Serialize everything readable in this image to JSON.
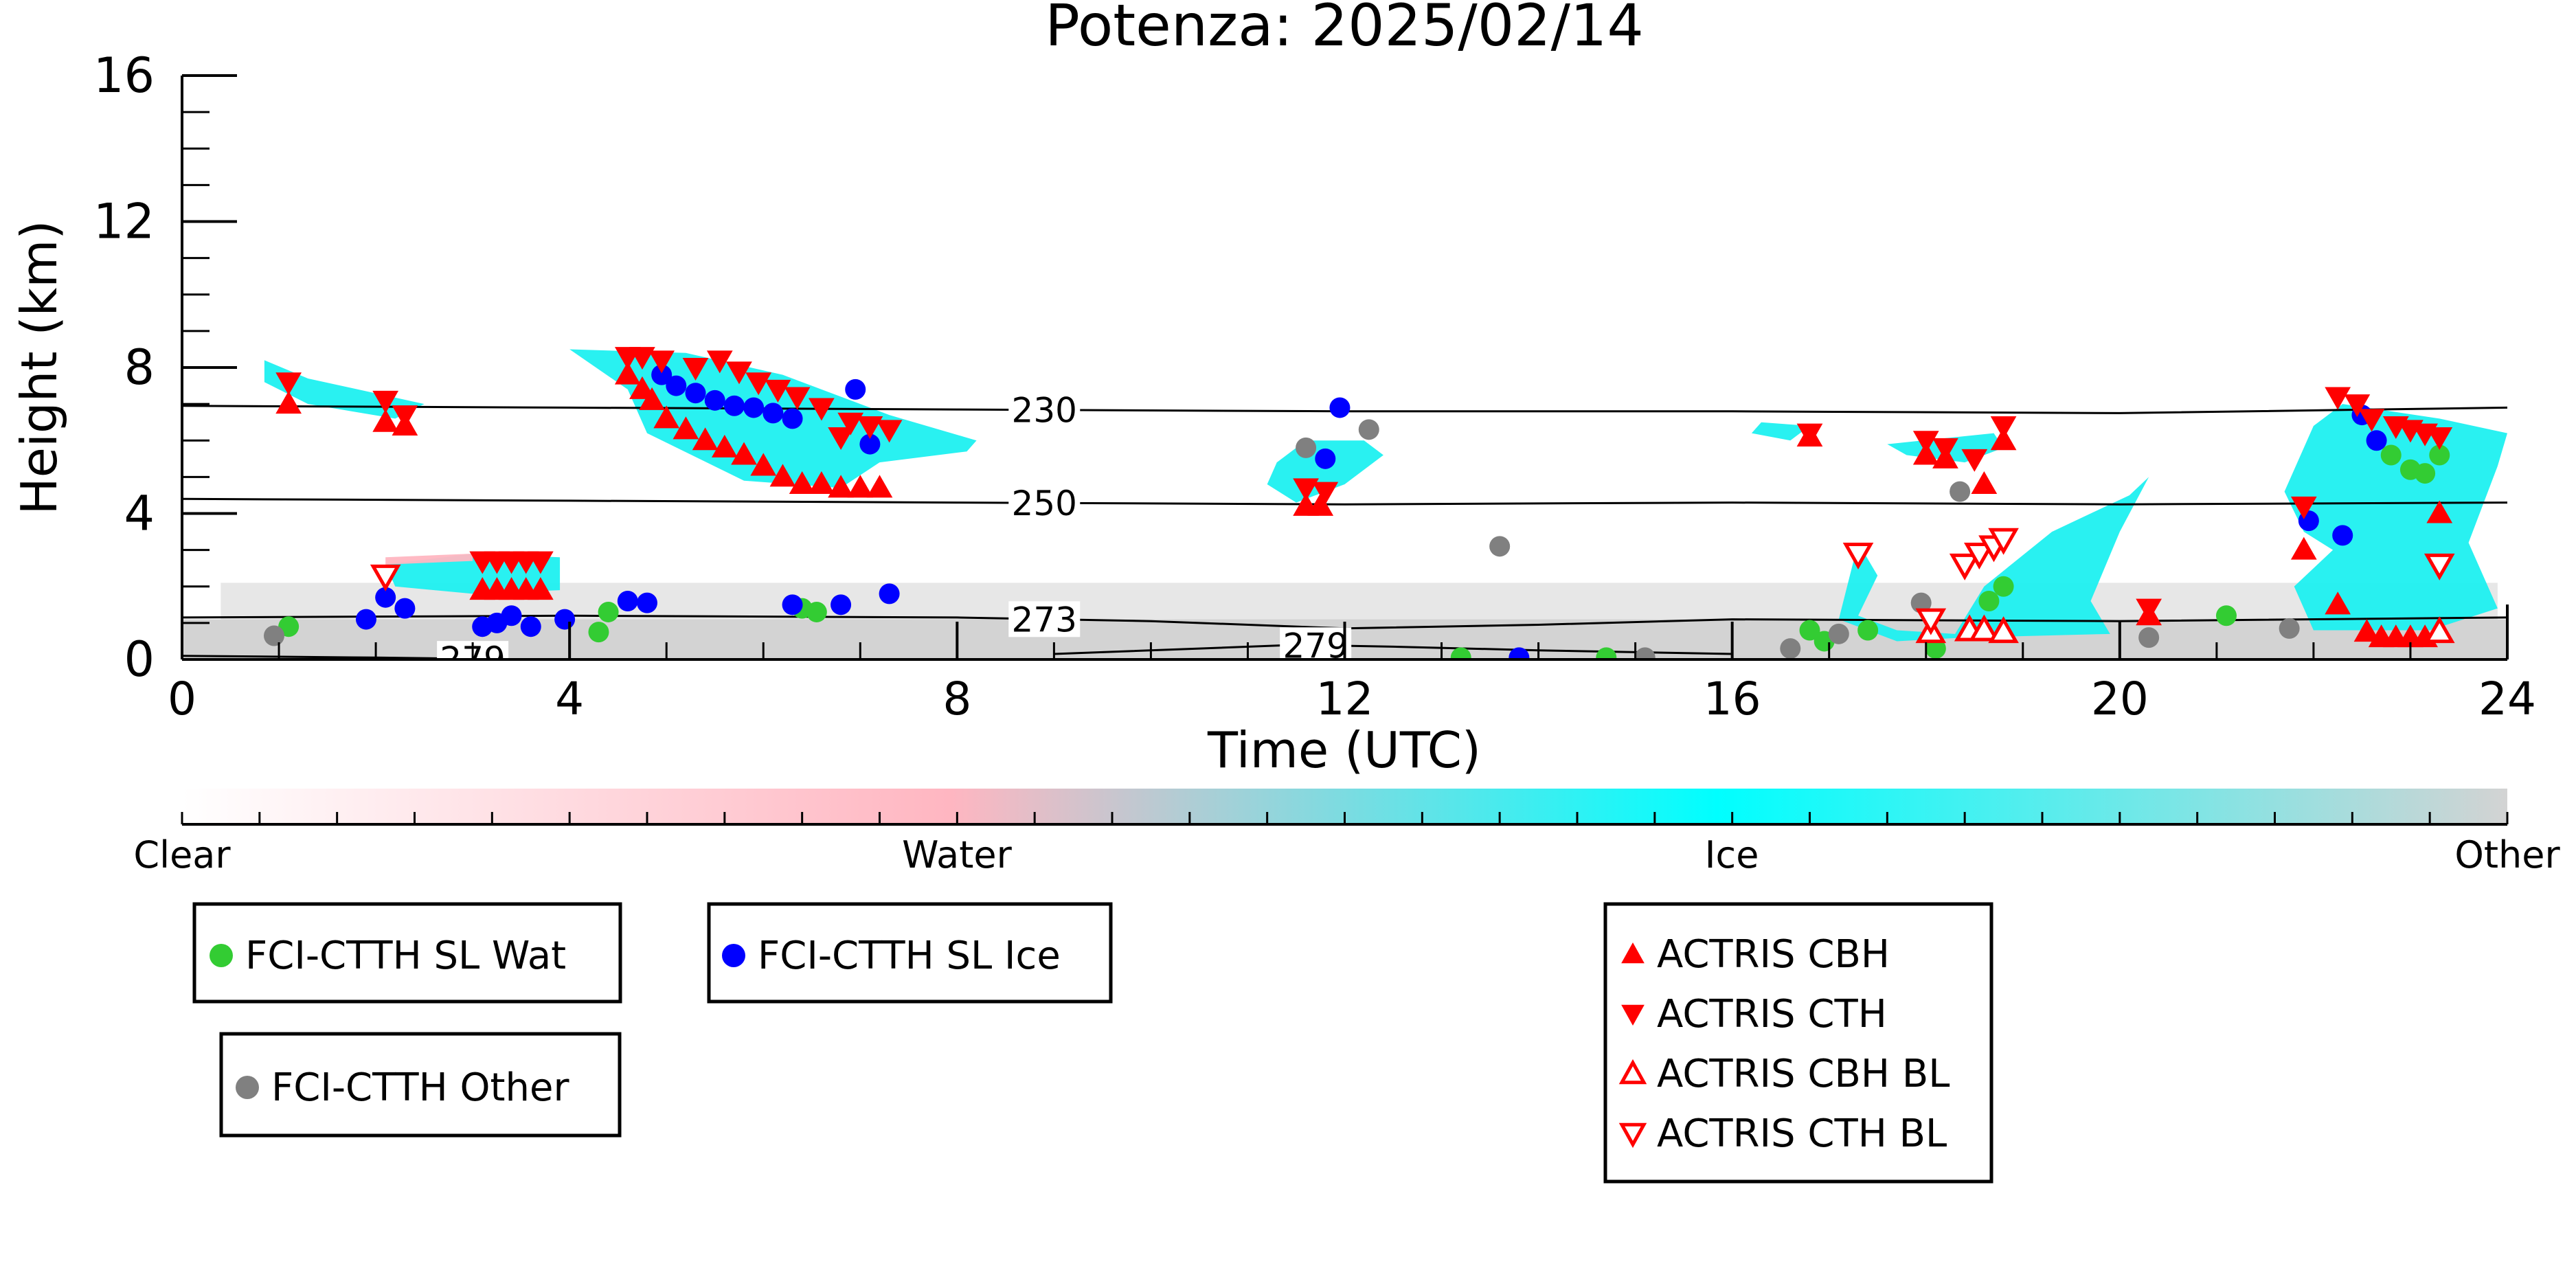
{
  "chart_data": {
    "type": "scatter",
    "title": "Potenza: 2025/02/14",
    "xlabel": "Time (UTC)",
    "ylabel": "Height (km)",
    "xlim": [
      0,
      24
    ],
    "ylim": [
      0,
      16
    ],
    "xticks": [
      0,
      4,
      8,
      12,
      16,
      20,
      24
    ],
    "yticks": [
      0,
      4,
      8,
      12,
      16
    ],
    "colorbar": {
      "labels": [
        "Clear",
        "Water",
        "Ice",
        "Other"
      ],
      "colors": [
        "#ffffff",
        "#ffb6c1",
        "#00ffff",
        "#d3d3d3"
      ]
    },
    "contours": [
      {
        "label": "230",
        "points": [
          [
            0,
            6.95
          ],
          [
            4,
            6.9
          ],
          [
            8,
            6.85
          ],
          [
            12,
            6.8
          ],
          [
            16,
            6.8
          ],
          [
            20,
            6.75
          ],
          [
            24,
            6.9
          ]
        ]
      },
      {
        "label": "250",
        "points": [
          [
            0,
            4.4
          ],
          [
            4,
            4.35
          ],
          [
            8,
            4.3
          ],
          [
            12,
            4.25
          ],
          [
            16,
            4.3
          ],
          [
            20,
            4.25
          ],
          [
            24,
            4.3
          ]
        ]
      },
      {
        "label": "273",
        "points": [
          [
            0,
            1.15
          ],
          [
            4,
            1.2
          ],
          [
            8,
            1.15
          ],
          [
            10,
            1.05
          ],
          [
            12,
            0.85
          ],
          [
            14,
            0.95
          ],
          [
            16,
            1.1
          ],
          [
            20,
            1.05
          ],
          [
            24,
            1.15
          ]
        ]
      },
      {
        "label": "279",
        "points": [
          [
            9,
            0.15
          ],
          [
            10.5,
            0.3
          ],
          [
            11.5,
            0.4
          ],
          [
            12.5,
            0.35
          ],
          [
            14,
            0.25
          ],
          [
            16,
            0.15
          ]
        ]
      },
      {
        "label": "279",
        "points": [
          [
            0,
            0.1
          ],
          [
            2,
            0.05
          ],
          [
            3.5,
            0.0
          ]
        ]
      }
    ],
    "series": [
      {
        "name": "FCI-CTTH SL Wat",
        "marker": "circle",
        "color": "#33cc33",
        "points": [
          [
            1.1,
            0.9
          ],
          [
            4.3,
            0.75
          ],
          [
            4.4,
            1.3
          ],
          [
            6.4,
            1.4
          ],
          [
            6.55,
            1.3
          ],
          [
            13.2,
            0.05
          ],
          [
            14.7,
            0.05
          ],
          [
            16.8,
            0.8
          ],
          [
            16.95,
            0.5
          ],
          [
            17.4,
            0.8
          ],
          [
            18.1,
            0.3
          ],
          [
            18.65,
            1.6
          ],
          [
            18.8,
            2.0
          ],
          [
            21.1,
            1.2
          ],
          [
            22.8,
            5.6
          ],
          [
            23.0,
            5.2
          ],
          [
            23.15,
            5.1
          ],
          [
            23.3,
            5.6
          ]
        ]
      },
      {
        "name": "FCI-CTTH SL Ice",
        "marker": "circle",
        "color": "#0000ff",
        "points": [
          [
            1.9,
            1.1
          ],
          [
            2.1,
            1.7
          ],
          [
            2.3,
            1.4
          ],
          [
            3.1,
            0.9
          ],
          [
            3.25,
            1.0
          ],
          [
            3.4,
            1.2
          ],
          [
            3.6,
            0.9
          ],
          [
            3.95,
            1.1
          ],
          [
            4.6,
            1.6
          ],
          [
            4.8,
            1.55
          ],
          [
            4.95,
            7.8
          ],
          [
            5.1,
            7.5
          ],
          [
            5.3,
            7.3
          ],
          [
            5.5,
            7.1
          ],
          [
            5.7,
            6.95
          ],
          [
            5.9,
            6.9
          ],
          [
            6.1,
            6.75
          ],
          [
            6.3,
            6.6
          ],
          [
            6.3,
            1.5
          ],
          [
            6.8,
            1.5
          ],
          [
            6.95,
            7.4
          ],
          [
            7.1,
            5.9
          ],
          [
            7.3,
            1.8
          ],
          [
            11.8,
            5.5
          ],
          [
            11.95,
            6.9
          ],
          [
            13.8,
            0.05
          ],
          [
            21.95,
            3.8
          ],
          [
            22.3,
            3.4
          ],
          [
            22.5,
            6.7
          ],
          [
            22.65,
            6.0
          ]
        ]
      },
      {
        "name": "FCI-CTTH Other",
        "marker": "circle",
        "color": "#808080",
        "points": [
          [
            0.95,
            0.65
          ],
          [
            11.6,
            5.8
          ],
          [
            12.25,
            6.3
          ],
          [
            13.6,
            3.1
          ],
          [
            15.1,
            0.05
          ],
          [
            16.6,
            0.3
          ],
          [
            17.1,
            0.7
          ],
          [
            17.95,
            1.55
          ],
          [
            18.35,
            4.6
          ],
          [
            20.3,
            0.6
          ],
          [
            21.75,
            0.85
          ]
        ]
      },
      {
        "name": "ACTRIS CBH",
        "marker": "triangle-up",
        "color": "#ff0000",
        "filled": true,
        "points": [
          [
            1.1,
            7.0
          ],
          [
            2.1,
            6.5
          ],
          [
            2.3,
            6.4
          ],
          [
            3.1,
            1.9
          ],
          [
            3.25,
            1.9
          ],
          [
            3.4,
            1.9
          ],
          [
            3.55,
            1.9
          ],
          [
            3.7,
            1.9
          ],
          [
            4.6,
            7.8
          ],
          [
            4.75,
            7.4
          ],
          [
            4.85,
            7.1
          ],
          [
            5.0,
            6.6
          ],
          [
            5.2,
            6.3
          ],
          [
            5.4,
            6.0
          ],
          [
            5.6,
            5.8
          ],
          [
            5.8,
            5.6
          ],
          [
            6.0,
            5.3
          ],
          [
            6.2,
            5.0
          ],
          [
            6.4,
            4.8
          ],
          [
            6.6,
            4.8
          ],
          [
            6.8,
            4.7
          ],
          [
            7.0,
            4.7
          ],
          [
            7.2,
            4.7
          ],
          [
            11.6,
            4.2
          ],
          [
            11.75,
            4.2
          ],
          [
            16.8,
            6.1
          ],
          [
            18.0,
            5.6
          ],
          [
            18.2,
            5.5
          ],
          [
            18.6,
            4.8
          ],
          [
            18.8,
            6.0
          ],
          [
            20.3,
            1.2
          ],
          [
            21.9,
            3.0
          ],
          [
            22.25,
            1.5
          ],
          [
            22.55,
            0.75
          ],
          [
            22.7,
            0.6
          ],
          [
            22.85,
            0.6
          ],
          [
            23.0,
            0.6
          ],
          [
            23.15,
            0.6
          ],
          [
            23.3,
            4.0
          ]
        ]
      },
      {
        "name": "ACTRIS CTH",
        "marker": "triangle-down",
        "color": "#ff0000",
        "filled": true,
        "points": [
          [
            1.1,
            7.6
          ],
          [
            2.1,
            7.1
          ],
          [
            2.3,
            6.7
          ],
          [
            3.1,
            2.7
          ],
          [
            3.25,
            2.7
          ],
          [
            3.4,
            2.7
          ],
          [
            3.55,
            2.7
          ],
          [
            3.7,
            2.7
          ],
          [
            4.6,
            8.3
          ],
          [
            4.75,
            8.3
          ],
          [
            4.95,
            8.2
          ],
          [
            5.3,
            8.0
          ],
          [
            5.55,
            8.2
          ],
          [
            5.75,
            7.9
          ],
          [
            5.95,
            7.6
          ],
          [
            6.15,
            7.4
          ],
          [
            6.35,
            7.2
          ],
          [
            6.6,
            6.9
          ],
          [
            6.8,
            6.1
          ],
          [
            6.9,
            6.5
          ],
          [
            7.1,
            6.4
          ],
          [
            7.3,
            6.3
          ],
          [
            11.6,
            4.7
          ],
          [
            11.8,
            4.6
          ],
          [
            16.8,
            6.2
          ],
          [
            18.0,
            6.0
          ],
          [
            18.2,
            5.8
          ],
          [
            18.5,
            5.5
          ],
          [
            18.8,
            6.4
          ],
          [
            20.3,
            1.4
          ],
          [
            21.9,
            4.2
          ],
          [
            22.25,
            7.2
          ],
          [
            22.45,
            7.0
          ],
          [
            22.6,
            6.6
          ],
          [
            22.85,
            6.4
          ],
          [
            23.0,
            6.3
          ],
          [
            23.15,
            6.2
          ],
          [
            23.3,
            6.1
          ]
        ]
      },
      {
        "name": "ACTRIS CBH BL",
        "marker": "triangle-up",
        "color": "#ff0000",
        "filled": false,
        "points": [
          [
            18.05,
            0.75
          ],
          [
            18.45,
            0.8
          ],
          [
            18.6,
            0.8
          ],
          [
            18.8,
            0.75
          ],
          [
            23.3,
            0.75
          ]
        ]
      },
      {
        "name": "ACTRIS CTH BL",
        "marker": "triangle-down",
        "color": "#ff0000",
        "filled": false,
        "points": [
          [
            2.1,
            2.3
          ],
          [
            17.3,
            2.9
          ],
          [
            18.05,
            1.1
          ],
          [
            18.4,
            2.6
          ],
          [
            18.55,
            2.9
          ],
          [
            18.7,
            3.1
          ],
          [
            18.8,
            3.3
          ],
          [
            23.3,
            2.6
          ]
        ]
      }
    ]
  },
  "legend": [
    {
      "group": "fci-wat",
      "entries": [
        {
          "label": "FCI-CTTH SL Wat",
          "marker": "circle",
          "color": "#33cc33"
        }
      ]
    },
    {
      "group": "fci-ice",
      "entries": [
        {
          "label": "FCI-CTTH SL Ice",
          "marker": "circle",
          "color": "#0000ff"
        }
      ]
    },
    {
      "group": "fci-other",
      "entries": [
        {
          "label": "FCI-CTTH Other",
          "marker": "circle",
          "color": "#808080"
        }
      ]
    },
    {
      "group": "actris",
      "entries": [
        {
          "label": "ACTRIS CBH",
          "marker": "triangle-up",
          "color": "#ff0000",
          "filled": true
        },
        {
          "label": "ACTRIS CTH",
          "marker": "triangle-down",
          "color": "#ff0000",
          "filled": true
        },
        {
          "label": "ACTRIS CBH BL",
          "marker": "triangle-up",
          "color": "#ff0000",
          "filled": false
        },
        {
          "label": "ACTRIS CTH BL",
          "marker": "triangle-down",
          "color": "#ff0000",
          "filled": false
        }
      ]
    }
  ]
}
